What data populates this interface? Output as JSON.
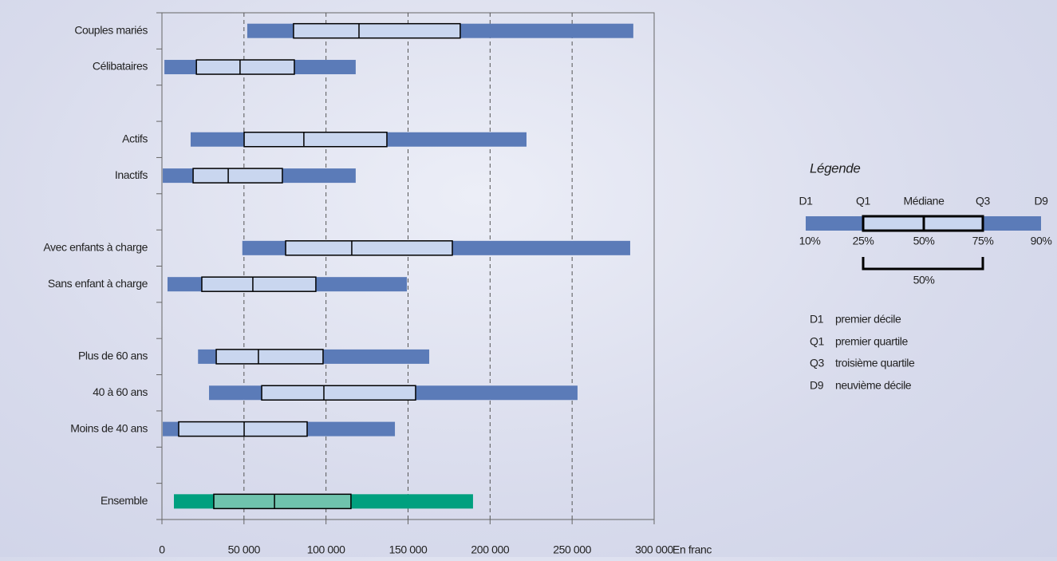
{
  "chart_data": {
    "type": "boxplot-horizontal",
    "categories": [
      "Couples mariés",
      "Célibataires",
      null,
      "Actifs",
      "Inactifs",
      null,
      "Avec enfants à charge",
      "Sans enfant à charge",
      null,
      "Plus de 60 ans",
      "40 à 60 ans",
      "Moins de 40 ans",
      null,
      "Ensemble"
    ],
    "series": [
      {
        "name": "D1",
        "values": [
          52000,
          1500,
          null,
          17500,
          500,
          null,
          49000,
          3400,
          null,
          22000,
          28700,
          500,
          null,
          7300
        ]
      },
      {
        "name": "Q1",
        "values": [
          80200,
          21000,
          null,
          50100,
          19000,
          null,
          75400,
          24300,
          null,
          33100,
          60800,
          10200,
          null,
          31600
        ]
      },
      {
        "name": "Médiane",
        "values": [
          120100,
          47600,
          null,
          86500,
          40400,
          null,
          115700,
          55400,
          null,
          58800,
          98700,
          50100,
          null,
          68600
        ]
      },
      {
        "name": "Q3",
        "values": [
          181800,
          80700,
          null,
          137100,
          73400,
          null,
          177000,
          93800,
          null,
          98200,
          154600,
          88500,
          null,
          115200
        ]
      },
      {
        "name": "D9",
        "values": [
          287300,
          118100,
          null,
          222200,
          118100,
          null,
          285400,
          149300,
          null,
          162900,
          253300,
          142000,
          null,
          189600
        ]
      }
    ],
    "bar_colors": [
      "#5b7bb8",
      "#5b7bb8",
      null,
      "#5b7bb8",
      "#5b7bb8",
      null,
      "#5b7bb8",
      "#5b7bb8",
      null,
      "#5b7bb8",
      "#5b7bb8",
      "#5b7bb8",
      null,
      "#00a07f"
    ],
    "box_colors": [
      "#c9d6ef",
      "#c9d6ef",
      null,
      "#c9d6ef",
      "#c9d6ef",
      null,
      "#c9d6ef",
      "#c9d6ef",
      null,
      "#c9d6ef",
      "#c9d6ef",
      "#c9d6ef",
      null,
      "#6fc3ad"
    ],
    "xlim": [
      0,
      300000
    ],
    "xticks": [
      0,
      {
        "value": 50000,
        "label": "50 000"
      },
      {
        "value": 100000,
        "label": "100 000"
      },
      {
        "value": 150000,
        "label": "150 000"
      },
      {
        "value": 200000,
        "label": "200 000"
      },
      {
        "value": 250000,
        "label": "250 000"
      },
      {
        "value": 300000,
        "label": "300 000"
      }
    ],
    "x_label": "En franc",
    "grid": true,
    "legend": {
      "title": "Légende",
      "percents": [
        "10%",
        "25%",
        "50%",
        "75%",
        "90%"
      ],
      "span": "50%",
      "definitions": [
        {
          "code": "D1",
          "text": "premier décile"
        },
        {
          "code": "Q1",
          "text": "premier quartile"
        },
        {
          "code": "Q3",
          "text": "troisième quartile"
        },
        {
          "code": "D9",
          "text": "neuvième décile"
        }
      ]
    }
  }
}
